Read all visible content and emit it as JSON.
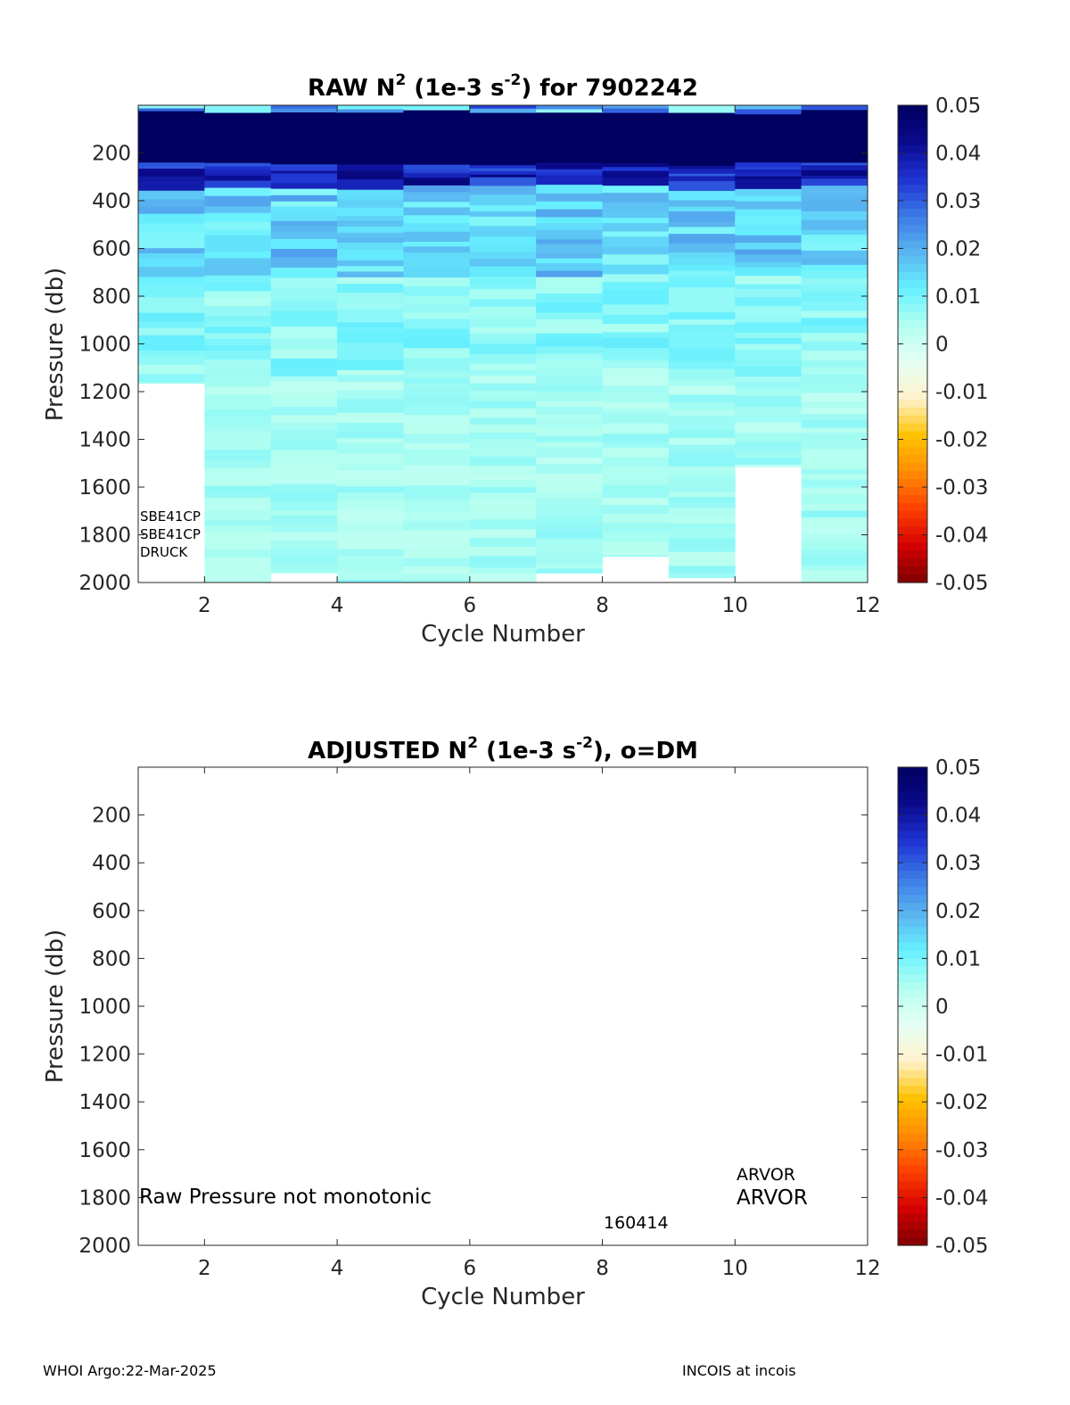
{
  "colors": {
    "scale": [
      "#7f0000",
      "#d40000",
      "#ff4000",
      "#ff8c00",
      "#ffc200",
      "#fff2cc",
      "#e6fff4",
      "#b3fff0",
      "#66f0ff",
      "#5ab4f0",
      "#3c78e6",
      "#1e32d2",
      "#0a0a8c",
      "#000060"
    ]
  },
  "chart_data": [
    {
      "type": "heatmap",
      "title_main": "RAW N",
      "title_sup": "2",
      "title_mid": " (1e-3 s",
      "title_sup2": "-2",
      "title_end": ") for 7902242",
      "xlabel": "Cycle Number",
      "ylabel": "Pressure (db)",
      "xlim": [
        1,
        12
      ],
      "ylim": [
        0,
        2000
      ],
      "y_reversed": true,
      "xticks": [
        "2",
        "4",
        "6",
        "8",
        "10",
        "12"
      ],
      "yticks": [
        "200",
        "400",
        "600",
        "800",
        "1000",
        "1200",
        "1400",
        "1600",
        "1800",
        "2000"
      ],
      "colorbar": {
        "range": [
          -0.05,
          0.05
        ],
        "ticks": [
          "0.05",
          "0.04",
          "0.03",
          "0.02",
          "0.01",
          "0",
          "-0.01",
          "-0.02",
          "-0.03",
          "-0.04",
          "-0.05"
        ]
      },
      "cycles": [
        1,
        2,
        3,
        4,
        5,
        6,
        7,
        8,
        9,
        10,
        11
      ],
      "max_pressure": [
        1165,
        2000,
        1960,
        2000,
        2000,
        2000,
        1960,
        1890,
        1980,
        1515,
        2000
      ],
      "sensor_labels": [
        "SBE41CP",
        "SBE41CP",
        "DRUCK"
      ]
    },
    {
      "type": "heatmap",
      "title_main": "ADJUSTED N",
      "title_sup": "2",
      "title_mid": " (1e-3 s",
      "title_sup2": "-2",
      "title_end": "), o=DM",
      "xlabel": "Cycle Number",
      "ylabel": "Pressure (db)",
      "xlim": [
        1,
        12
      ],
      "ylim": [
        0,
        2000
      ],
      "y_reversed": true,
      "xticks": [
        "2",
        "4",
        "6",
        "8",
        "10",
        "12"
      ],
      "yticks": [
        "200",
        "400",
        "600",
        "800",
        "1000",
        "1200",
        "1400",
        "1600",
        "1800",
        "2000"
      ],
      "colorbar": {
        "range": [
          -0.05,
          0.05
        ],
        "ticks": [
          "0.05",
          "0.04",
          "0.03",
          "0.02",
          "0.01",
          "0",
          "-0.01",
          "-0.02",
          "-0.03",
          "-0.04",
          "-0.05"
        ]
      },
      "annotations": {
        "message": "Raw Pressure not monotonic",
        "platform_small": "ARVOR",
        "platform_large": "ARVOR",
        "serial": "160414"
      }
    }
  ],
  "footer": {
    "left": "WHOI Argo:22-Mar-2025",
    "right": "INCOIS at incois"
  }
}
